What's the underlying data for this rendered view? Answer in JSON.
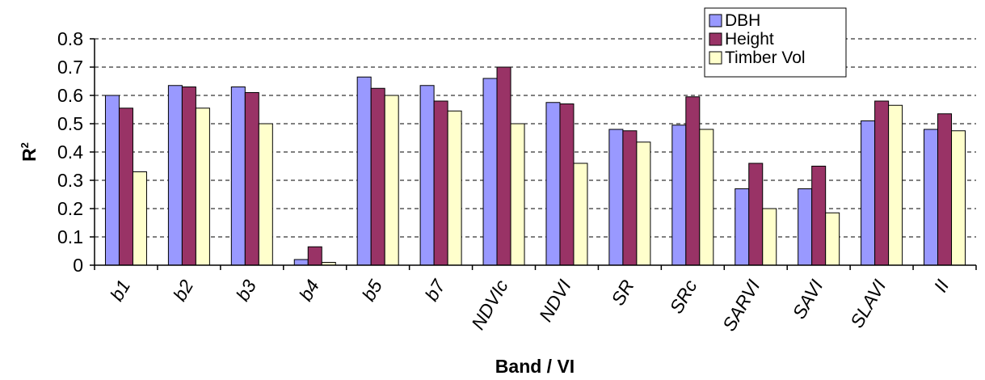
{
  "chart_data": {
    "type": "bar",
    "title": "",
    "xlabel": "Band / VI",
    "ylabel": "R",
    "ylabel_superscript": "2",
    "ylim": [
      0,
      0.8
    ],
    "yticks": [
      "0",
      "0.1",
      "0.2",
      "0.3",
      "0.4",
      "0.5",
      "0.6",
      "0.7",
      "0.8"
    ],
    "grid": "horizontal dashed",
    "legend_position": "top-right",
    "categories": [
      "b1",
      "b2",
      "b3",
      "b4",
      "b5",
      "b7",
      "NDVIc",
      "NDVI",
      "SR",
      "SRc",
      "SARVI",
      "SAVI",
      "SLAVI",
      "II"
    ],
    "series": [
      {
        "name": "DBH",
        "color": "#9999ff",
        "values": [
          0.6,
          0.635,
          0.63,
          0.02,
          0.665,
          0.635,
          0.66,
          0.575,
          0.48,
          0.495,
          0.27,
          0.27,
          0.51,
          0.48
        ]
      },
      {
        "name": "Height",
        "color": "#993366",
        "values": [
          0.555,
          0.63,
          0.61,
          0.065,
          0.625,
          0.58,
          0.7,
          0.57,
          0.475,
          0.595,
          0.36,
          0.35,
          0.58,
          0.535
        ]
      },
      {
        "name": "Timber Vol",
        "color": "#ffffcc",
        "values": [
          0.33,
          0.555,
          0.5,
          0.01,
          0.6,
          0.545,
          0.5,
          0.36,
          0.435,
          0.48,
          0.2,
          0.185,
          0.565,
          0.475
        ]
      }
    ]
  }
}
